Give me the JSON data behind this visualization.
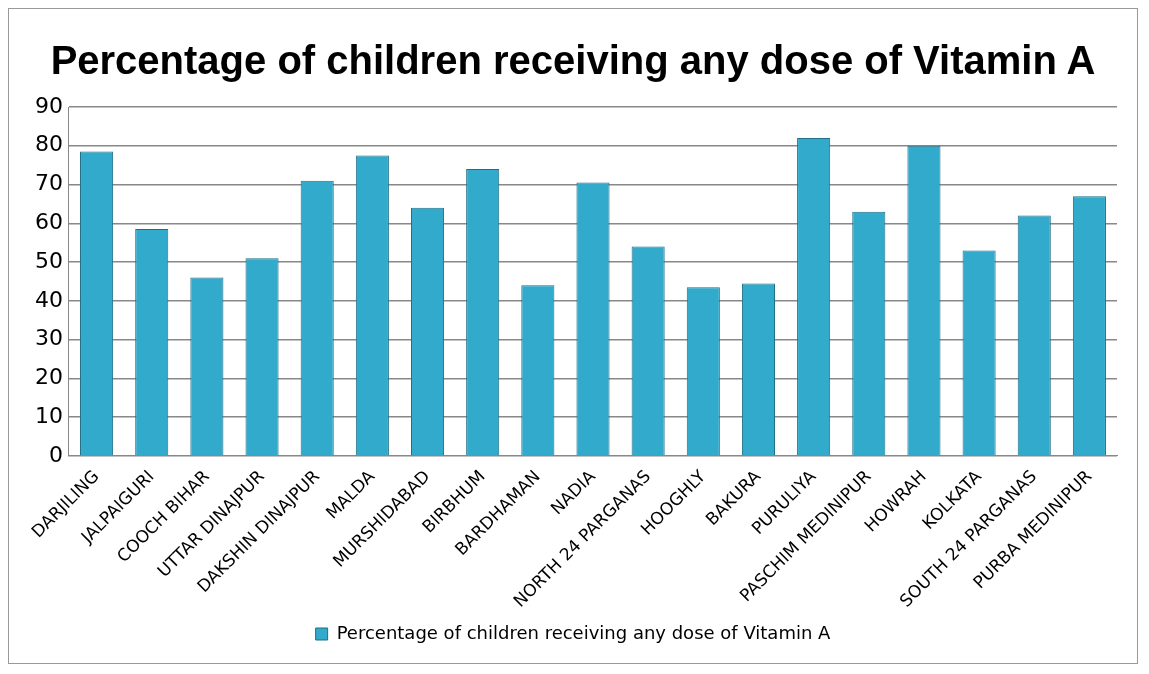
{
  "chart_data": {
    "type": "bar",
    "title": "Percentage of children receiving any dose of Vitamin A",
    "categories": [
      "DARJILING",
      "JALPAIGURI",
      "COOCH BIHAR",
      "UTTAR DINAJPUR",
      "DAKSHIN DINAJPUR",
      "MALDA",
      "MURSHIDABAD",
      "BIRBHUM",
      "BARDHAMAN",
      "NADIA",
      "NORTH 24 PARGANAS",
      "HOOGHLY",
      "BAKURA",
      "PURULIYA",
      "PASCHIM MEDINIPUR",
      "HOWRAH",
      "KOLKATA",
      "SOUTH 24 PARGANAS",
      "PURBA MEDINIPUR"
    ],
    "series": [
      {
        "name": "Percentage of children receiving any dose of Vitamin A",
        "color": "#31aacb",
        "values": [
          78.5,
          58.5,
          46,
          51,
          71,
          77.5,
          64,
          74,
          44,
          70.5,
          54,
          43.5,
          44.5,
          82,
          63,
          80,
          53,
          62,
          67
        ]
      }
    ],
    "ylim": [
      0,
      90
    ],
    "yticks": [
      0,
      10,
      20,
      30,
      40,
      50,
      60,
      70,
      80,
      90
    ],
    "grid": "y",
    "legend": "bottom"
  }
}
